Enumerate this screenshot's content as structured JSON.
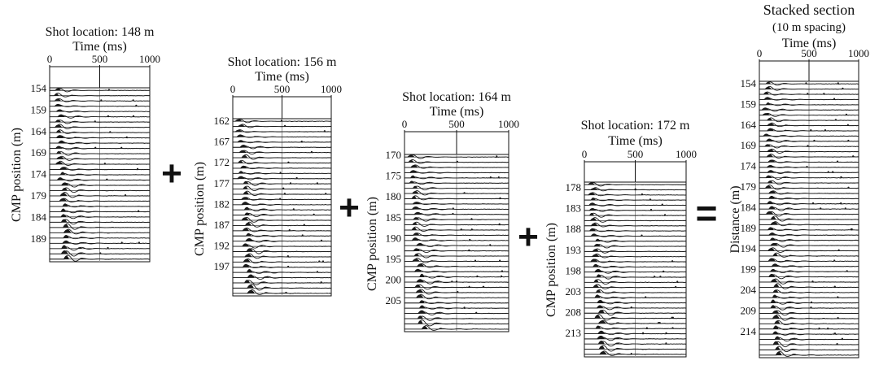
{
  "panels": [
    {
      "id": "p1",
      "title": "Shot location: 148 m",
      "subtitle": "",
      "time_label": "Time (ms)",
      "ylabel": "CMP position (m)",
      "time_ticks": [
        "0",
        "500",
        "1000"
      ],
      "y_ticks": [
        "154",
        "159",
        "164",
        "169",
        "174",
        "179",
        "184",
        "189"
      ],
      "y_range": [
        154,
        189
      ],
      "time_range": [
        0,
        1000
      ]
    },
    {
      "id": "p2",
      "title": "Shot location: 156 m",
      "subtitle": "",
      "time_label": "Time (ms)",
      "ylabel": "CMP position (m)",
      "time_ticks": [
        "0",
        "500",
        "1000"
      ],
      "y_ticks": [
        "162",
        "167",
        "172",
        "177",
        "182",
        "187",
        "192",
        "197"
      ],
      "y_range": [
        162,
        197
      ],
      "time_range": [
        0,
        1000
      ]
    },
    {
      "id": "p3",
      "title": "Shot location: 164 m",
      "subtitle": "",
      "time_label": "Time (ms)",
      "ylabel": "CMP position (m)",
      "time_ticks": [
        "0",
        "500",
        "1000"
      ],
      "y_ticks": [
        "170",
        "175",
        "180",
        "185",
        "190",
        "195",
        "200",
        "205"
      ],
      "y_range": [
        170,
        205
      ],
      "time_range": [
        0,
        1000
      ]
    },
    {
      "id": "p4",
      "title": "Shot location: 172 m",
      "subtitle": "",
      "time_label": "Time (ms)",
      "ylabel": "CMP position (m)",
      "time_ticks": [
        "0",
        "500",
        "1000"
      ],
      "y_ticks": [
        "178",
        "183",
        "188",
        "193",
        "198",
        "203",
        "208",
        "213"
      ],
      "y_range": [
        178,
        213
      ],
      "time_range": [
        0,
        1000
      ]
    },
    {
      "id": "p5",
      "title": "Stacked section",
      "subtitle": "(10 m spacing)",
      "time_label": "Time (ms)",
      "ylabel": "Distance (m)",
      "time_ticks": [
        "0",
        "500",
        "1000"
      ],
      "y_ticks": [
        "154",
        "159",
        "164",
        "169",
        "174",
        "179",
        "184",
        "189",
        "194",
        "199",
        "204",
        "209",
        "214"
      ],
      "y_range": [
        154,
        214
      ],
      "time_range": [
        0,
        1000
      ]
    }
  ],
  "operators": [
    "+",
    "+",
    "+",
    "="
  ],
  "colors": {
    "ink": "#111111",
    "trace": "#1a1a1a",
    "grid": "#9a9a9a"
  }
}
